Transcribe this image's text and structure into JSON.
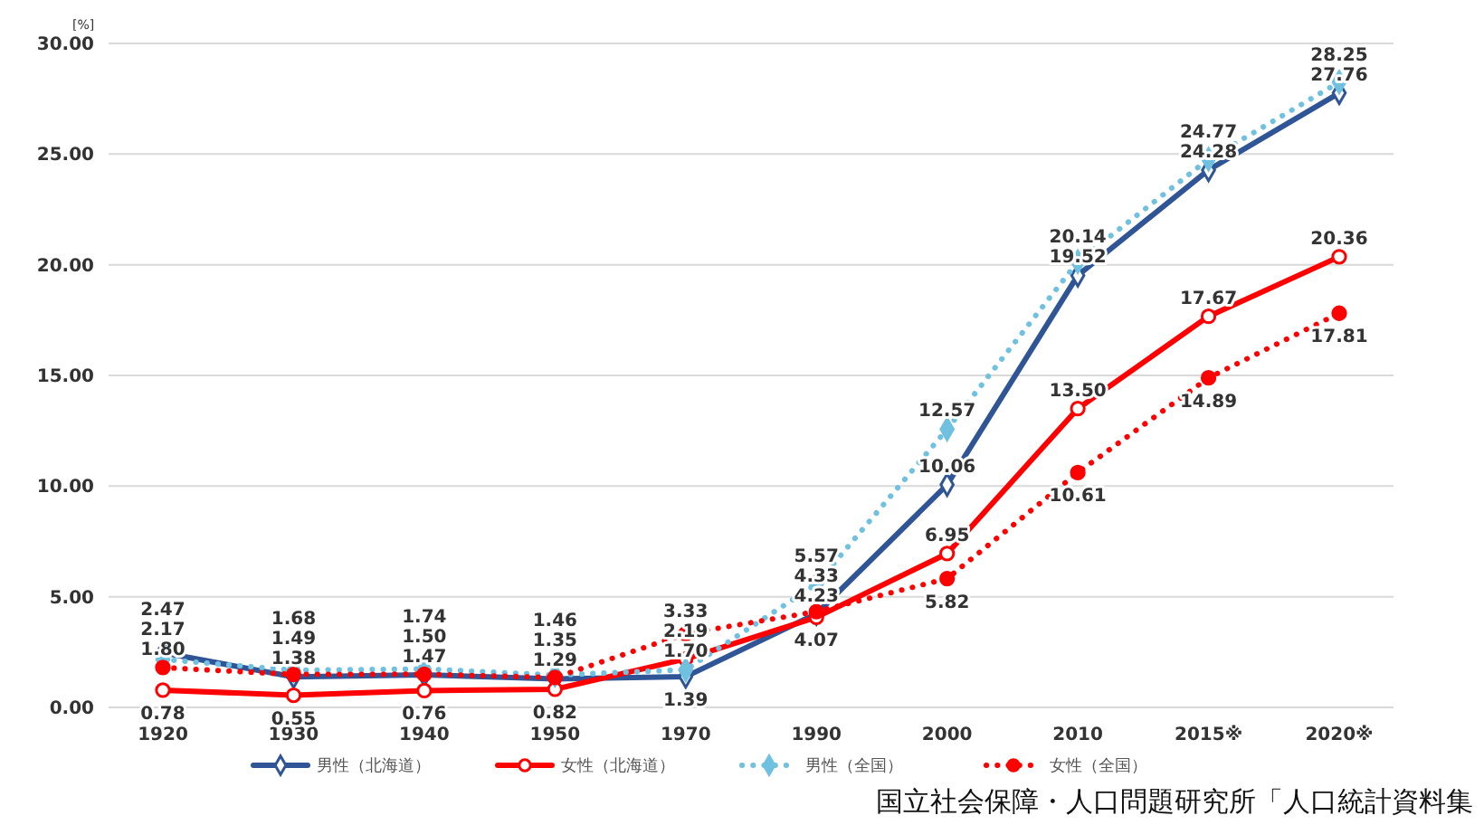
{
  "chart_data": {
    "type": "line",
    "ylabel": "[%]",
    "categories": [
      "1920",
      "1930",
      "1940",
      "1950",
      "1970",
      "1990",
      "2000",
      "2010",
      "2015※",
      "2020※"
    ],
    "ylim": [
      0,
      30
    ],
    "yticks": [
      {
        "value": 0,
        "label": "0.00"
      },
      {
        "value": 5,
        "label": "5.00"
      },
      {
        "value": 10,
        "label": "10.00"
      },
      {
        "value": 15,
        "label": "15.00"
      },
      {
        "value": 20,
        "label": "20.00"
      },
      {
        "value": 25,
        "label": "25.00"
      },
      {
        "value": 30,
        "label": "30.00"
      }
    ],
    "grid": "y",
    "legend": "bottom",
    "series": [
      {
        "name": "男性（北海道）",
        "color": "#2f5597",
        "marker": "diamond",
        "line_style": "solid",
        "values": [
          2.47,
          1.38,
          1.47,
          1.29,
          1.39,
          4.23,
          10.06,
          19.52,
          24.28,
          27.76
        ],
        "value_labels": [
          "2.47",
          "1.38",
          "1.47",
          "1.29",
          "1.39",
          "4.23",
          "10.06",
          "19.52",
          "24.28",
          "27.76"
        ]
      },
      {
        "name": "女性（北海道）",
        "color": "#ff0000",
        "marker": "circle",
        "line_style": "solid",
        "values": [
          0.78,
          0.55,
          0.76,
          0.82,
          2.19,
          4.07,
          6.95,
          13.5,
          17.67,
          20.36
        ],
        "value_labels": [
          "0.78",
          "0.55",
          "0.76",
          "0.82",
          "2.19",
          "4.07",
          "6.95",
          "13.50",
          "17.67",
          "20.36"
        ]
      },
      {
        "name": "男性（全国）",
        "color": "#70c0e0",
        "marker": "diamond",
        "line_style": "dotted",
        "values": [
          2.17,
          1.68,
          1.74,
          1.46,
          1.7,
          5.57,
          12.57,
          20.14,
          24.77,
          28.25
        ],
        "value_labels": [
          "2.17",
          "1.68",
          "1.74",
          "1.46",
          "1.70",
          "5.57",
          "12.57",
          "20.14",
          "24.77",
          "28.25"
        ]
      },
      {
        "name": "女性（全国）",
        "color": "#ff0000",
        "marker": "circle",
        "line_style": "dotted",
        "values": [
          1.8,
          1.49,
          1.5,
          1.35,
          3.33,
          4.33,
          5.82,
          10.61,
          14.89,
          17.81
        ],
        "value_labels": [
          "1.80",
          "1.49",
          "1.50",
          "1.35",
          "3.33",
          "4.33",
          "5.82",
          "10.61",
          "14.89",
          "17.81"
        ]
      }
    ],
    "annotations": [
      "国立社会保障・人口問題研究所「人口統計資料集"
    ]
  }
}
